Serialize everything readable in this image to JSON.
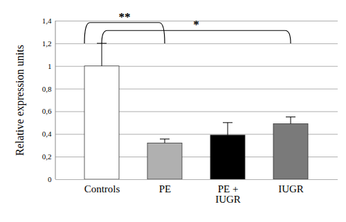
{
  "chart_data": {
    "type": "bar",
    "categories": [
      "Controls",
      "PE",
      "PE + IUGR",
      "IUGR"
    ],
    "values": [
      1.0,
      0.32,
      0.39,
      0.49
    ],
    "errors": [
      0.2,
      0.035,
      0.11,
      0.06
    ],
    "colors": [
      "#ffffff",
      "#b0b0b0",
      "#000000",
      "#7a7a7a"
    ],
    "y_label": "Relative expression units",
    "ylim": [
      0,
      1.4
    ],
    "yticks": [
      0,
      {
        "value": 0.2,
        "label": "0,2"
      },
      {
        "value": 0.4,
        "label": "0,4"
      },
      {
        "value": 0.6,
        "label": "0,6"
      },
      {
        "value": 0.8,
        "label": "0,8"
      },
      1,
      {
        "value": 1.2,
        "label": "1,2"
      },
      {
        "value": 1.4,
        "label": "1,4"
      }
    ],
    "grid": true,
    "annotations": [
      {
        "text": "**",
        "from": "Controls",
        "to": "PE"
      },
      {
        "text": "*",
        "from": "Controls",
        "to": "IUGR"
      }
    ]
  }
}
